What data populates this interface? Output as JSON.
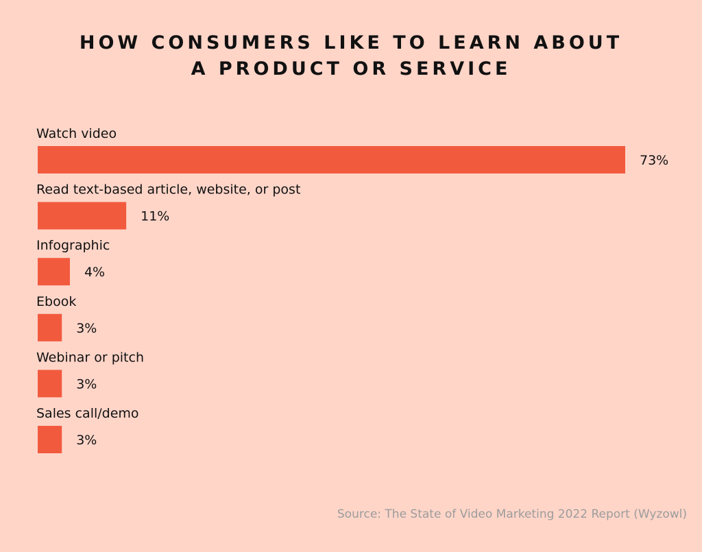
{
  "chart_data": {
    "type": "bar",
    "orientation": "horizontal",
    "title_lines": [
      "HOW CONSUMERS LIKE TO LEARN ABOUT",
      "A PRODUCT OR SERVICE"
    ],
    "categories": [
      "Watch video",
      "Read text-based article, website, or post",
      "Infographic",
      "Ebook",
      "Webinar or pitch",
      "Sales call/demo"
    ],
    "values": [
      73,
      11,
      4,
      3,
      3,
      3
    ],
    "value_labels": [
      "73%",
      "11%",
      "4%",
      "3%",
      "3%",
      "3%"
    ],
    "xlim": [
      0,
      73
    ],
    "grid": false,
    "legend": "none",
    "bar_color": "#f25a3e",
    "source": "Source: The State of Video Marketing 2022 Report (Wyzowl)"
  }
}
